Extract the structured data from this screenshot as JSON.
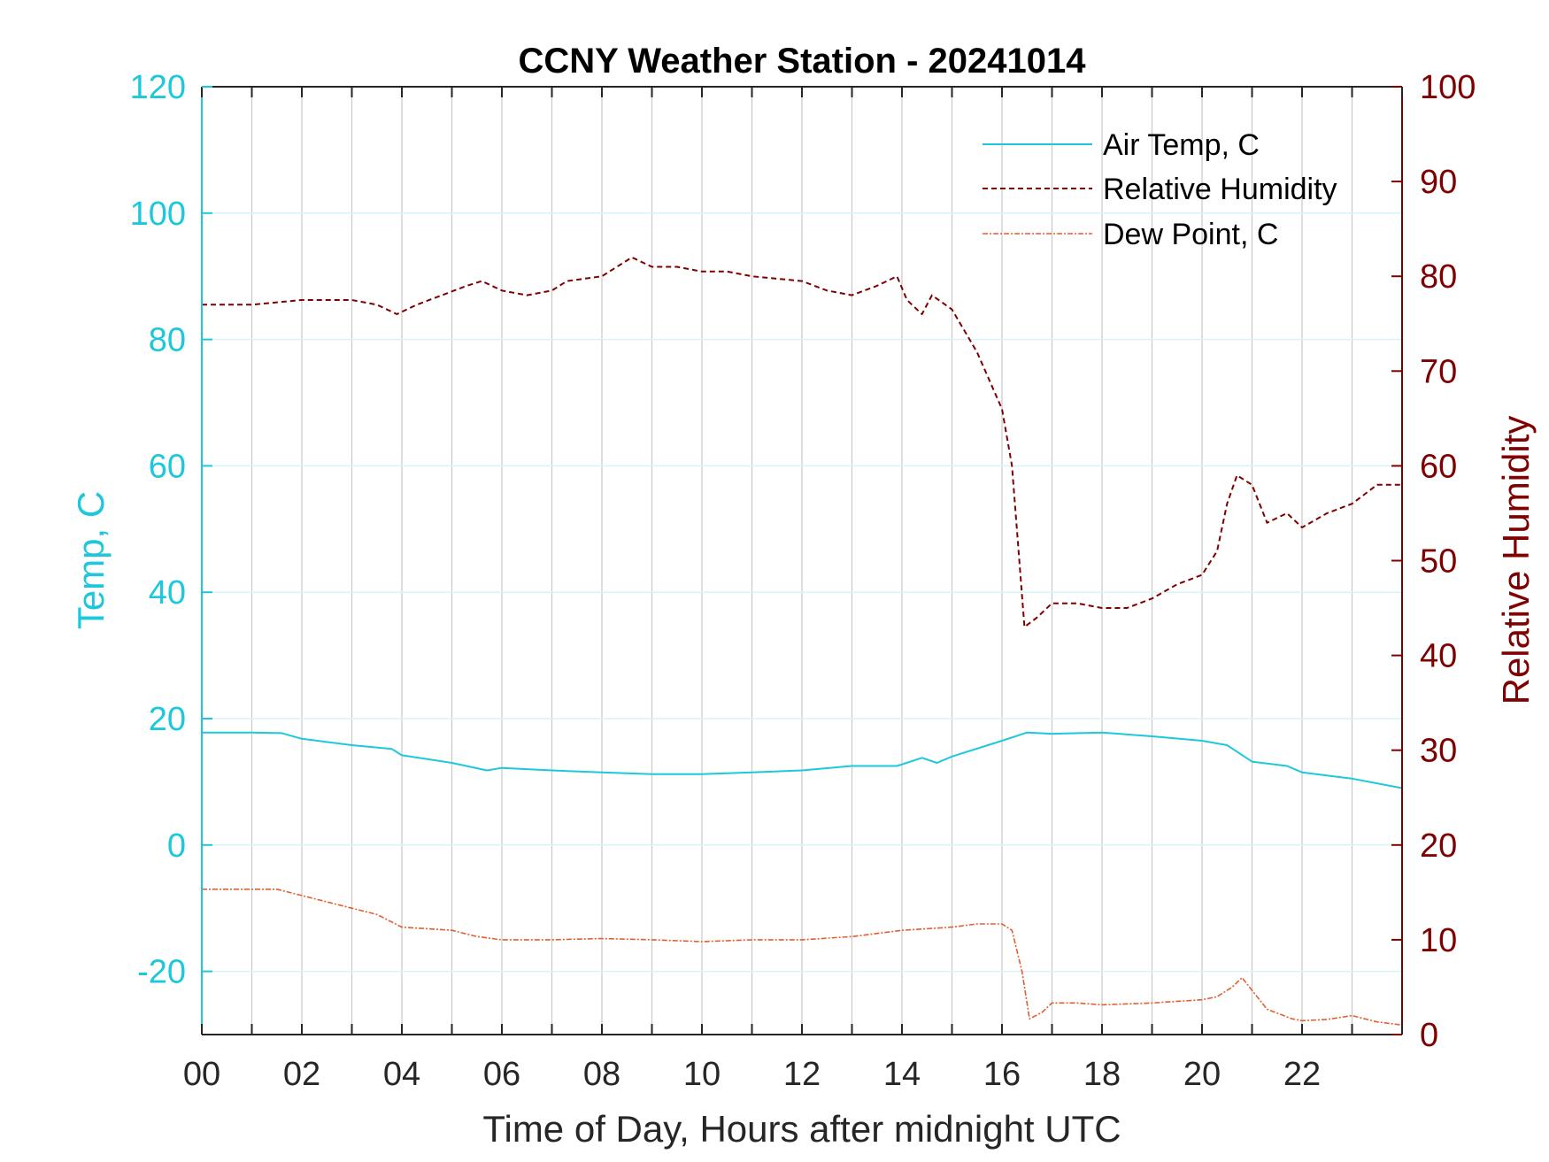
{
  "chart_data": {
    "type": "line",
    "title": "CCNY Weather Station - 20241014",
    "xlabel": "Time of Day, Hours after midnight UTC",
    "ylabel_left": "Temp, C",
    "ylabel_right": "Relative Humidity",
    "xlim": [
      0,
      24
    ],
    "ylim_left": [
      -30,
      120
    ],
    "ylim_right": [
      0,
      100
    ],
    "x_ticks": [
      0,
      2,
      4,
      6,
      8,
      10,
      12,
      14,
      16,
      18,
      20,
      22
    ],
    "x_tick_labels": [
      "00",
      "02",
      "04",
      "06",
      "08",
      "10",
      "12",
      "14",
      "16",
      "18",
      "20",
      "22"
    ],
    "y_left_ticks": [
      -20,
      0,
      20,
      40,
      60,
      80,
      100,
      120
    ],
    "y_left_tick_labels": [
      "-20",
      "0",
      "20",
      "40",
      "60",
      "80",
      "100",
      "120"
    ],
    "y_right_ticks": [
      0,
      10,
      20,
      30,
      40,
      50,
      60,
      70,
      80,
      90,
      100
    ],
    "y_right_tick_labels": [
      "0",
      "10",
      "20",
      "30",
      "40",
      "50",
      "60",
      "70",
      "80",
      "90",
      "100"
    ],
    "grid": true,
    "legend_position": "top-right",
    "colors": {
      "left_axis": "#1ec8dc",
      "right_axis": "#7f0000",
      "air_temp": "#1ec8dc",
      "humidity": "#7f0000",
      "dew_point": "#e06030",
      "grid_vertical": "#c8c8c8",
      "grid_horizontal": "#d6f4f8"
    },
    "series": [
      {
        "name": "Air Temp, C",
        "axis": "left",
        "style": "solid",
        "x": [
          0,
          1,
          1.6,
          2,
          3,
          3.8,
          4,
          5,
          5.7,
          6,
          7,
          8,
          9,
          10,
          11,
          12,
          13,
          13.9,
          14.4,
          14.7,
          15,
          16,
          16.5,
          17,
          18,
          19,
          20,
          20.5,
          21,
          21.7,
          22,
          23,
          24
        ],
        "values": [
          17.8,
          17.8,
          17.7,
          16.8,
          15.8,
          15.2,
          14.2,
          13.0,
          11.8,
          12.2,
          11.8,
          11.5,
          11.2,
          11.2,
          11.5,
          11.8,
          12.5,
          12.5,
          13.8,
          13.0,
          14.0,
          16.5,
          17.8,
          17.6,
          17.8,
          17.2,
          16.5,
          15.8,
          13.2,
          12.5,
          11.5,
          10.5,
          9.0
        ]
      },
      {
        "name": "Relative Humidity",
        "axis": "right",
        "style": "dashed",
        "x": [
          0,
          1,
          2,
          3,
          3.5,
          3.9,
          4.3,
          4.8,
          5.3,
          5.6,
          6,
          6.5,
          7,
          7.3,
          8,
          8.6,
          9,
          9.5,
          10,
          10.5,
          11,
          12,
          12.5,
          13,
          13.5,
          13.9,
          14.1,
          14.4,
          14.6,
          15,
          15.5,
          16,
          16.2,
          16.45,
          16.7,
          17,
          17.5,
          18,
          18.5,
          19,
          19.5,
          20,
          20.3,
          20.5,
          20.7,
          21,
          21.3,
          21.7,
          22,
          22.5,
          23,
          23.5,
          24
        ],
        "values": [
          77,
          77,
          77.5,
          77.5,
          77,
          76,
          77,
          78,
          79,
          79.5,
          78.5,
          78,
          78.5,
          79.5,
          80,
          82,
          81,
          81,
          80.5,
          80.5,
          80,
          79.5,
          78.5,
          78,
          79,
          80,
          77.5,
          76,
          78,
          76.5,
          72,
          66,
          60,
          43,
          44,
          45.5,
          45.5,
          45,
          45,
          46,
          47.5,
          48.5,
          51,
          56,
          59,
          58,
          54,
          55,
          53.5,
          55,
          56,
          58,
          58
        ]
      },
      {
        "name": "Dew Point, C",
        "axis": "left",
        "style": "dashdot",
        "x": [
          0,
          1,
          1.5,
          2,
          3,
          3.5,
          4,
          5,
          5.5,
          6,
          7,
          8,
          9,
          10,
          11,
          12,
          13,
          14,
          15,
          15.5,
          16,
          16.2,
          16.4,
          16.55,
          16.8,
          17,
          17.5,
          18,
          19,
          20,
          20.3,
          20.6,
          20.8,
          21,
          21.3,
          21.8,
          22,
          22.5,
          23,
          23.5,
          24
        ],
        "values": [
          -7,
          -7,
          -7,
          -8,
          -10,
          -11,
          -13,
          -13.5,
          -14.5,
          -15,
          -15,
          -14.8,
          -15,
          -15.3,
          -15,
          -15,
          -14.5,
          -13.5,
          -13,
          -12.5,
          -12.5,
          -13.5,
          -20,
          -27.5,
          -26.5,
          -25,
          -25,
          -25.3,
          -25,
          -24.5,
          -24,
          -22.5,
          -21,
          -23,
          -26,
          -27.5,
          -27.8,
          -27.6,
          -27,
          -28,
          -28.5
        ]
      }
    ]
  }
}
